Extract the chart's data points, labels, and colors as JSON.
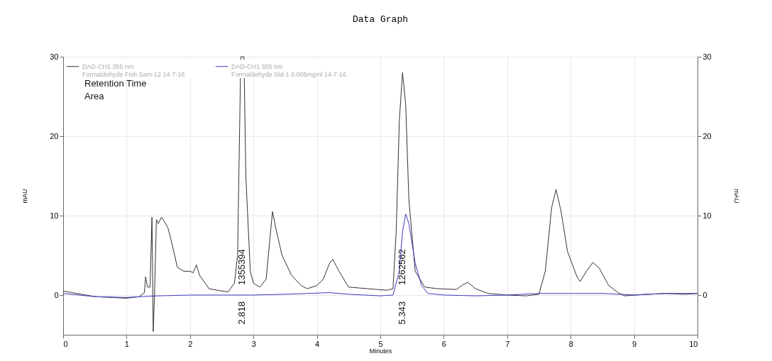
{
  "chart_data": {
    "type": "line",
    "title": "Data Graph",
    "xlabel": "Minutes",
    "ylabel": "mAU",
    "y2label": "mAU",
    "xlim": [
      0,
      10
    ],
    "xticks": [
      0,
      1,
      2,
      3,
      4,
      5,
      6,
      7,
      8,
      9,
      10
    ],
    "ylim": [
      -5,
      30
    ],
    "yticks": [
      0,
      10,
      20,
      30
    ],
    "y2lim": [
      -5,
      30
    ],
    "y2ticks": [
      0,
      10,
      20,
      30
    ],
    "grid": true,
    "legend": "top left",
    "line_style": "solid",
    "series": [
      {
        "name": "DAD-CH1  355 nm\nFormaldehyde Fish Sam-12 14-7-16",
        "color": "#333333",
        "x": [
          0,
          0.5,
          1.0,
          1.2,
          1.28,
          1.3,
          1.33,
          1.37,
          1.4,
          1.42,
          1.44,
          1.47,
          1.5,
          1.55,
          1.6,
          1.65,
          1.7,
          1.8,
          1.9,
          2.0,
          2.05,
          2.1,
          2.15,
          2.3,
          2.5,
          2.6,
          2.7,
          2.75,
          2.78,
          2.8,
          2.85,
          2.88,
          2.95,
          3.0,
          3.1,
          3.2,
          3.27,
          3.3,
          3.35,
          3.45,
          3.6,
          3.75,
          3.85,
          4.0,
          4.1,
          4.2,
          4.25,
          4.35,
          4.5,
          4.8,
          5.1,
          5.2,
          5.25,
          5.3,
          5.35,
          5.4,
          5.45,
          5.55,
          5.7,
          5.9,
          6.2,
          6.3,
          6.38,
          6.5,
          6.7,
          7.0,
          7.3,
          7.5,
          7.6,
          7.7,
          7.77,
          7.85,
          7.95,
          8.1,
          8.15,
          8.25,
          8.35,
          8.45,
          8.6,
          8.75,
          8.85,
          9.2,
          9.5,
          9.8,
          10
        ],
        "values": [
          0.5,
          -0.2,
          -0.4,
          -0.2,
          0.3,
          2.3,
          1.0,
          1.0,
          9.8,
          -4.6,
          0,
          9.5,
          9.0,
          9.8,
          9.2,
          8.5,
          7.0,
          3.5,
          3.0,
          3.0,
          2.8,
          3.8,
          2.5,
          0.8,
          0.5,
          0.4,
          1.5,
          5,
          20,
          30,
          30,
          15,
          3,
          1.5,
          1.0,
          2.0,
          8,
          10.5,
          8.5,
          5,
          2.5,
          1.2,
          0.8,
          1.2,
          2.0,
          4.0,
          4.5,
          3.0,
          1.0,
          0.8,
          0.6,
          0.8,
          8,
          22,
          28,
          24,
          12,
          3,
          1.0,
          0.8,
          0.7,
          1.3,
          1.6,
          0.8,
          0.2,
          0,
          -0.1,
          0.1,
          3,
          11,
          13.3,
          10.5,
          5.5,
          2.3,
          1.7,
          3.0,
          4.1,
          3.4,
          1.2,
          0.3,
          -0.1,
          0.1,
          0.2,
          0.1,
          0.2
        ]
      },
      {
        "name": "DAD-CH1  355 nm\nFormaldehyde Std-1  0.005mgml  14-7-16",
        "color": "#3b3bbf",
        "x": [
          0,
          0.5,
          1.0,
          1.5,
          2.0,
          2.5,
          3.0,
          3.5,
          4.2,
          4.5,
          5.0,
          5.2,
          5.3,
          5.35,
          5.4,
          5.45,
          5.55,
          5.65,
          5.75,
          6.0,
          6.5,
          7.0,
          7.5,
          8.0,
          8.5,
          9.0,
          9.5,
          10
        ],
        "values": [
          0.2,
          -0.2,
          -0.3,
          -0.1,
          0,
          0,
          0,
          0.1,
          0.3,
          0.1,
          -0.1,
          0,
          3,
          8,
          10.2,
          9,
          4,
          1.2,
          0.2,
          0,
          -0.1,
          0,
          0.2,
          0.2,
          0.2,
          0,
          0.2,
          0.2
        ]
      }
    ],
    "annotations": [
      "Retention Time",
      "Area",
      "2.818",
      "1355394",
      "5.343",
      "1262562"
    ]
  }
}
